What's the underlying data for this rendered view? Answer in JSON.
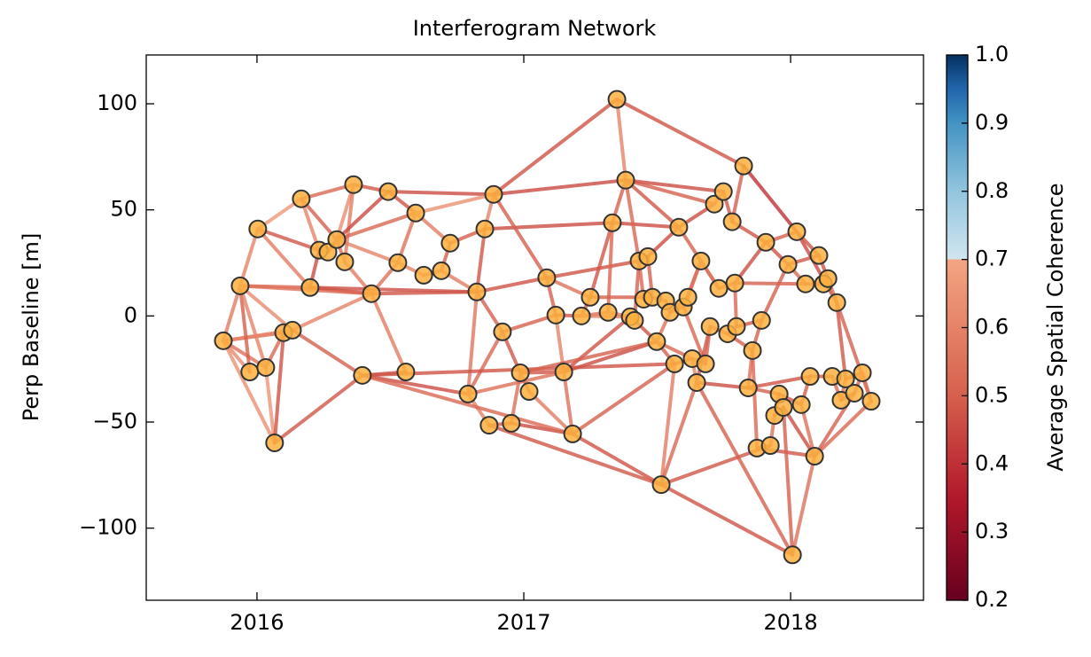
{
  "chart_data": {
    "type": "network",
    "title": "Interferogram Network",
    "ylabel": "Perp Baseline [m]",
    "colorbar_label": "Average Spatial Coherence",
    "xlim": [
      2015.585,
      2018.498
    ],
    "xticks": [
      2016,
      2017,
      2018
    ],
    "ylim": [
      -134,
      123
    ],
    "yticks": [
      {
        "value": 100,
        "label": "100"
      },
      {
        "value": 50,
        "label": "50"
      },
      {
        "value": 0,
        "label": "0"
      },
      {
        "value": -50,
        "label": "−50"
      },
      {
        "value": -100,
        "label": "−100"
      }
    ],
    "clim": [
      0.2,
      1.0
    ],
    "cticks": [
      0.2,
      0.3,
      0.4,
      0.5,
      0.6,
      0.7,
      0.8,
      0.9,
      {
        "value": 1,
        "label": "1.0"
      }
    ],
    "colormap": [
      [
        0.2,
        "#67001f"
      ],
      [
        0.35,
        "#b2182b"
      ],
      [
        0.5,
        "#d6604d"
      ],
      [
        0.7,
        "#f4a582"
      ],
      [
        0.7,
        "#d1e5f0"
      ],
      [
        0.8,
        "#92c5de"
      ],
      [
        0.9,
        "#4393c3"
      ],
      [
        0.95,
        "#2166ac"
      ],
      [
        1.0,
        "#053061"
      ]
    ],
    "node_color": "#fbb040",
    "x": [
      2015.874,
      2015.973,
      2016.033,
      2016.066,
      2015.937,
      2016.003,
      2016.166,
      2016.362,
      2016.492,
      2016.595,
      2016.233,
      2016.266,
      2016.299,
      2016.329,
      2016.199,
      2016.1,
      2016.133,
      2016.429,
      2016.395,
      2016.528,
      2016.625,
      2016.691,
      2016.724,
      2016.558,
      2016.824,
      2016.854,
      2016.887,
      2016.92,
      2016.791,
      2016.87,
      2016.953,
      2016.987,
      2017.02,
      2017.086,
      2017.12,
      2017.15,
      2017.216,
      2017.249,
      2017.183,
      2017.316,
      2017.332,
      2017.349,
      2017.382,
      2017.399,
      2017.415,
      2017.432,
      2017.465,
      2017.449,
      2017.482,
      2017.498,
      2017.532,
      2017.548,
      2017.565,
      2017.515,
      2017.581,
      2017.598,
      2017.615,
      2017.631,
      2017.648,
      2017.664,
      2017.681,
      2017.698,
      2017.714,
      2017.731,
      2017.748,
      2017.764,
      2017.781,
      2017.797,
      2017.791,
      2017.824,
      2017.841,
      2017.857,
      2017.874,
      2017.891,
      2017.907,
      2017.924,
      2017.94,
      2017.957,
      2017.973,
      2017.99,
      2018.007,
      2018.023,
      2018.04,
      2018.056,
      2018.073,
      2018.09,
      2018.106,
      2018.123,
      2018.14,
      2018.156,
      2018.173,
      2018.189,
      2018.206,
      2018.239,
      2018.269,
      2018.302
    ],
    "values": [
      -11.7,
      -26.4,
      -24.3,
      -59.8,
      14.2,
      41,
      55.2,
      61.9,
      58.6,
      48.5,
      31,
      30.1,
      36,
      25.5,
      13.4,
      -7.9,
      -6.7,
      10.5,
      -28,
      25.1,
      19.2,
      21.3,
      34.3,
      -26.4,
      11.3,
      41,
      57.3,
      -7.5,
      -36.8,
      -51.5,
      -50.6,
      -26.8,
      -35.6,
      18,
      0.4,
      -26.4,
      0,
      8.8,
      -55.6,
      1.7,
      43.9,
      102.1,
      64,
      -0.4,
      -2.1,
      25.9,
      28,
      7.9,
      8.8,
      -12.1,
      7.1,
      1.7,
      -22.6,
      -79.5,
      41.8,
      4.2,
      8.8,
      -20.1,
      -31.4,
      25.9,
      -22.6,
      -5,
      52.7,
      13,
      58.6,
      -8.4,
      44.4,
      -5,
      15.5,
      70.7,
      -33.9,
      -16.3,
      -62.3,
      -2.1,
      34.7,
      -61.1,
      -46.9,
      -36.8,
      -43.1,
      24.3,
      -112.6,
      39.7,
      -41.8,
      15.1,
      -28.5,
      -66.1,
      28.5,
      15.1,
      17.6,
      -28.5,
      6.3,
      -39.7,
      -29.7,
      -36.4,
      -26.8,
      -40.2
    ],
    "edges": [
      [
        0,
        1,
        0.62
      ],
      [
        0,
        2,
        0.55
      ],
      [
        0,
        3,
        0.64
      ],
      [
        0,
        4,
        0.58
      ],
      [
        0,
        15,
        0.55
      ],
      [
        0,
        16,
        0.6
      ],
      [
        1,
        4,
        0.5
      ],
      [
        2,
        3,
        0.65
      ],
      [
        2,
        4,
        0.6
      ],
      [
        2,
        15,
        0.52
      ],
      [
        3,
        15,
        0.47
      ],
      [
        4,
        5,
        0.6
      ],
      [
        4,
        14,
        0.52
      ],
      [
        4,
        17,
        0.55
      ],
      [
        4,
        16,
        0.62
      ],
      [
        5,
        6,
        0.66
      ],
      [
        5,
        10,
        0.48
      ],
      [
        5,
        14,
        0.58
      ],
      [
        6,
        7,
        0.52
      ],
      [
        6,
        12,
        0.5
      ],
      [
        6,
        10,
        0.6
      ],
      [
        7,
        8,
        0.48
      ],
      [
        7,
        12,
        0.63
      ],
      [
        7,
        13,
        0.58
      ],
      [
        8,
        9,
        0.47
      ],
      [
        8,
        12,
        0.45
      ],
      [
        8,
        26,
        0.46
      ],
      [
        9,
        12,
        0.52
      ],
      [
        9,
        19,
        0.55
      ],
      [
        9,
        22,
        0.58
      ],
      [
        9,
        26,
        0.64
      ],
      [
        10,
        11,
        0.5
      ],
      [
        10,
        14,
        0.46
      ],
      [
        11,
        12,
        0.48
      ],
      [
        12,
        13,
        0.55
      ],
      [
        12,
        19,
        0.6
      ],
      [
        13,
        17,
        0.58
      ],
      [
        14,
        17,
        0.5
      ],
      [
        14,
        24,
        0.46
      ],
      [
        15,
        16,
        0.55
      ],
      [
        16,
        17,
        0.6
      ],
      [
        16,
        18,
        0.5
      ],
      [
        17,
        23,
        0.58
      ],
      [
        17,
        24,
        0.48
      ],
      [
        17,
        19,
        0.55
      ],
      [
        18,
        23,
        0.47
      ],
      [
        18,
        28,
        0.46
      ],
      [
        18,
        3,
        0.48
      ],
      [
        19,
        20,
        0.6
      ],
      [
        20,
        21,
        0.55
      ],
      [
        21,
        22,
        0.5
      ],
      [
        21,
        24,
        0.58
      ],
      [
        22,
        25,
        0.5
      ],
      [
        24,
        25,
        0.48
      ],
      [
        24,
        27,
        0.5
      ],
      [
        24,
        28,
        0.56
      ],
      [
        24,
        33,
        0.47
      ],
      [
        25,
        26,
        0.6
      ],
      [
        25,
        40,
        0.46
      ],
      [
        26,
        41,
        0.47
      ],
      [
        26,
        42,
        0.45
      ],
      [
        26,
        33,
        0.5
      ],
      [
        27,
        28,
        0.52
      ],
      [
        27,
        31,
        0.48
      ],
      [
        27,
        34,
        0.5
      ],
      [
        28,
        29,
        0.6
      ],
      [
        29,
        30,
        0.5
      ],
      [
        30,
        31,
        0.55
      ],
      [
        30,
        38,
        0.46
      ],
      [
        31,
        32,
        0.52
      ],
      [
        31,
        35,
        0.48
      ],
      [
        32,
        38,
        0.58
      ],
      [
        33,
        34,
        0.5
      ],
      [
        33,
        37,
        0.55
      ],
      [
        33,
        45,
        0.47
      ],
      [
        34,
        35,
        0.6
      ],
      [
        34,
        36,
        0.48
      ],
      [
        35,
        38,
        0.55
      ],
      [
        35,
        43,
        0.47
      ],
      [
        35,
        49,
        0.46
      ],
      [
        36,
        37,
        0.5
      ],
      [
        36,
        39,
        0.55
      ],
      [
        37,
        40,
        0.48
      ],
      [
        38,
        53,
        0.47
      ],
      [
        38,
        52,
        0.5
      ],
      [
        39,
        40,
        0.52
      ],
      [
        39,
        43,
        0.58
      ],
      [
        40,
        42,
        0.5
      ],
      [
        40,
        54,
        0.46
      ],
      [
        41,
        42,
        0.6
      ],
      [
        41,
        69,
        0.47
      ],
      [
        42,
        54,
        0.48
      ],
      [
        42,
        62,
        0.5
      ],
      [
        42,
        64,
        0.46
      ],
      [
        42,
        45,
        0.52
      ],
      [
        43,
        44,
        0.55
      ],
      [
        44,
        45,
        0.5
      ],
      [
        44,
        49,
        0.47
      ],
      [
        45,
        46,
        0.58
      ],
      [
        45,
        47,
        0.52
      ],
      [
        46,
        48,
        0.5
      ],
      [
        46,
        54,
        0.46
      ],
      [
        47,
        48,
        0.55
      ],
      [
        48,
        50,
        0.6
      ],
      [
        49,
        52,
        0.5
      ],
      [
        49,
        51,
        0.55
      ],
      [
        50,
        51,
        0.48
      ],
      [
        51,
        55,
        0.52
      ],
      [
        51,
        56,
        0.5
      ],
      [
        52,
        53,
        0.58
      ],
      [
        52,
        57,
        0.47
      ],
      [
        53,
        58,
        0.52
      ],
      [
        53,
        75,
        0.48
      ],
      [
        55,
        59,
        0.5
      ],
      [
        56,
        59,
        0.55
      ],
      [
        54,
        62,
        0.46
      ],
      [
        54,
        63,
        0.5
      ],
      [
        55,
        60,
        0.52
      ],
      [
        57,
        58,
        0.6
      ],
      [
        57,
        60,
        0.5
      ],
      [
        58,
        61,
        0.48
      ],
      [
        58,
        70,
        0.46
      ],
      [
        59,
        63,
        0.55
      ],
      [
        60,
        61,
        0.5
      ],
      [
        61,
        65,
        0.52
      ],
      [
        62,
        64,
        0.58
      ],
      [
        63,
        68,
        0.5
      ],
      [
        64,
        66,
        0.48
      ],
      [
        65,
        67,
        0.55
      ],
      [
        65,
        71,
        0.5
      ],
      [
        66,
        74,
        0.47
      ],
      [
        66,
        69,
        0.5
      ],
      [
        67,
        68,
        0.52
      ],
      [
        67,
        73,
        0.48
      ],
      [
        68,
        74,
        0.46
      ],
      [
        68,
        83,
        0.5
      ],
      [
        69,
        81,
        0.4
      ],
      [
        70,
        77,
        0.5
      ],
      [
        70,
        71,
        0.55
      ],
      [
        70,
        84,
        0.47
      ],
      [
        71,
        72,
        0.52
      ],
      [
        71,
        73,
        0.5
      ],
      [
        72,
        75,
        0.55
      ],
      [
        72,
        85,
        0.48
      ],
      [
        73,
        79,
        0.5
      ],
      [
        74,
        79,
        0.47
      ],
      [
        74,
        81,
        0.5
      ],
      [
        75,
        76,
        0.55
      ],
      [
        76,
        77,
        0.5
      ],
      [
        76,
        78,
        0.52
      ],
      [
        77,
        82,
        0.48
      ],
      [
        78,
        80,
        0.5
      ],
      [
        78,
        85,
        0.46
      ],
      [
        79,
        83,
        0.52
      ],
      [
        79,
        86,
        0.48
      ],
      [
        80,
        85,
        0.55
      ],
      [
        80,
        53,
        0.47
      ],
      [
        80,
        58,
        0.5
      ],
      [
        81,
        86,
        0.48
      ],
      [
        81,
        90,
        0.45
      ],
      [
        82,
        84,
        0.5
      ],
      [
        82,
        85,
        0.55
      ],
      [
        83,
        87,
        0.48
      ],
      [
        84,
        89,
        0.5
      ],
      [
        85,
        95,
        0.52
      ],
      [
        86,
        88,
        0.47
      ],
      [
        87,
        88,
        0.5
      ],
      [
        88,
        90,
        0.55
      ],
      [
        89,
        91,
        0.52
      ],
      [
        90,
        92,
        0.48
      ],
      [
        90,
        95,
        0.5
      ],
      [
        91,
        92,
        0.55
      ],
      [
        91,
        93,
        0.5
      ],
      [
        92,
        94,
        0.47
      ],
      [
        93,
        94,
        0.52
      ],
      [
        94,
        95,
        0.55
      ],
      [
        93,
        85,
        0.5
      ],
      [
        18,
        52,
        0.47
      ],
      [
        29,
        53,
        0.48
      ],
      [
        31,
        49,
        0.5
      ],
      [
        18,
        38,
        0.52
      ],
      [
        28,
        35,
        0.55
      ],
      [
        36,
        43,
        0.6
      ],
      [
        37,
        48,
        0.5
      ],
      [
        49,
        57,
        0.52
      ]
    ]
  }
}
